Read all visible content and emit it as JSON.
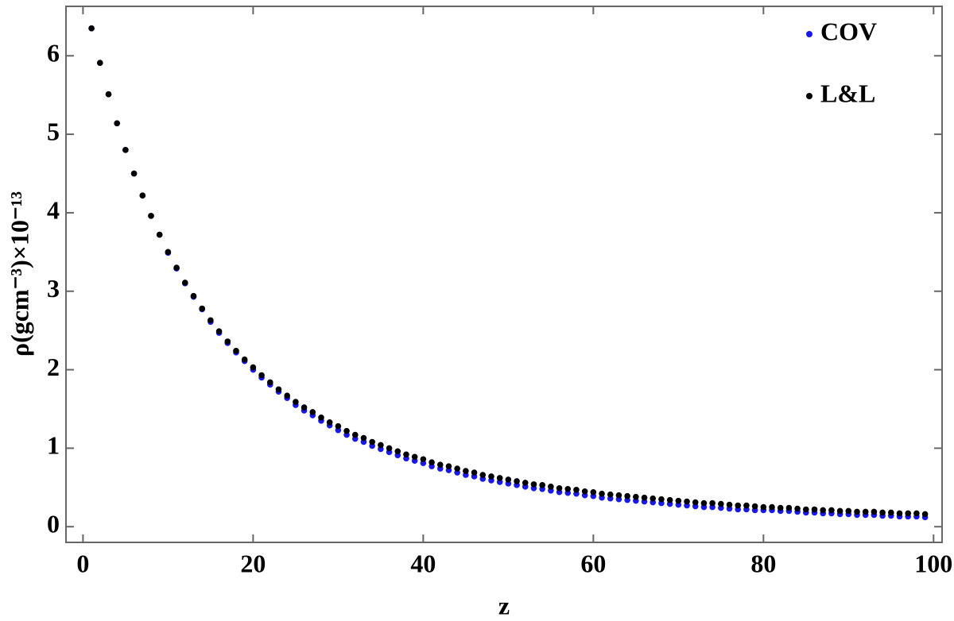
{
  "chart_data": {
    "type": "scatter",
    "x_label": "z",
    "y_label": "ρ(gcm⁻³)×10⁻¹³",
    "x": [
      1,
      2,
      3,
      4,
      5,
      6,
      7,
      8,
      9,
      10,
      11,
      12,
      13,
      14,
      15,
      16,
      17,
      18,
      19,
      20,
      21,
      22,
      23,
      24,
      25,
      26,
      27,
      28,
      29,
      30,
      31,
      32,
      33,
      34,
      35,
      36,
      37,
      38,
      39,
      40,
      41,
      42,
      43,
      44,
      45,
      46,
      47,
      48,
      49,
      50,
      51,
      52,
      53,
      54,
      55,
      56,
      57,
      58,
      59,
      60,
      61,
      62,
      63,
      64,
      65,
      66,
      67,
      68,
      69,
      70,
      71,
      72,
      73,
      74,
      75,
      76,
      77,
      78,
      79,
      80,
      81,
      82,
      83,
      84,
      85,
      86,
      87,
      88,
      89,
      90,
      91,
      92,
      93,
      94,
      95,
      96,
      97,
      98,
      99
    ],
    "series": [
      {
        "name": "COV",
        "color": "#1a1ae6",
        "values": [
          6.35,
          5.91,
          5.51,
          5.14,
          4.8,
          4.5,
          4.22,
          3.96,
          3.72,
          3.49,
          3.29,
          3.1,
          2.93,
          2.77,
          2.61,
          2.47,
          2.34,
          2.22,
          2.11,
          2.0,
          1.9,
          1.81,
          1.72,
          1.64,
          1.55,
          1.48,
          1.42,
          1.35,
          1.29,
          1.23,
          1.17,
          1.12,
          1.08,
          1.03,
          0.99,
          0.95,
          0.91,
          0.87,
          0.84,
          0.81,
          0.77,
          0.74,
          0.72,
          0.69,
          0.66,
          0.64,
          0.61,
          0.59,
          0.57,
          0.55,
          0.53,
          0.51,
          0.49,
          0.48,
          0.46,
          0.44,
          0.43,
          0.42,
          0.4,
          0.39,
          0.37,
          0.36,
          0.35,
          0.34,
          0.33,
          0.32,
          0.31,
          0.3,
          0.29,
          0.28,
          0.27,
          0.26,
          0.25,
          0.25,
          0.24,
          0.23,
          0.22,
          0.22,
          0.21,
          0.21,
          0.21,
          0.2,
          0.2,
          0.19,
          0.18,
          0.18,
          0.17,
          0.17,
          0.16,
          0.16,
          0.15,
          0.15,
          0.15,
          0.14,
          0.14,
          0.13,
          0.13,
          0.13,
          0.12
        ]
      },
      {
        "name": "L&L",
        "color": "#000000",
        "values": [
          6.35,
          5.91,
          5.51,
          5.14,
          4.8,
          4.5,
          4.22,
          3.96,
          3.72,
          3.5,
          3.3,
          3.11,
          2.94,
          2.78,
          2.63,
          2.49,
          2.36,
          2.24,
          2.13,
          2.03,
          1.93,
          1.84,
          1.75,
          1.67,
          1.59,
          1.52,
          1.46,
          1.39,
          1.33,
          1.28,
          1.22,
          1.17,
          1.13,
          1.08,
          1.04,
          1.0,
          0.96,
          0.92,
          0.89,
          0.86,
          0.82,
          0.79,
          0.77,
          0.74,
          0.71,
          0.69,
          0.66,
          0.64,
          0.62,
          0.6,
          0.58,
          0.56,
          0.54,
          0.53,
          0.51,
          0.49,
          0.48,
          0.47,
          0.45,
          0.44,
          0.42,
          0.41,
          0.4,
          0.39,
          0.38,
          0.37,
          0.36,
          0.35,
          0.34,
          0.33,
          0.32,
          0.31,
          0.3,
          0.3,
          0.29,
          0.28,
          0.27,
          0.27,
          0.26,
          0.25,
          0.25,
          0.24,
          0.24,
          0.23,
          0.22,
          0.22,
          0.21,
          0.21,
          0.2,
          0.2,
          0.19,
          0.19,
          0.19,
          0.18,
          0.18,
          0.17,
          0.17,
          0.17,
          0.16
        ]
      }
    ],
    "xlim": [
      -2,
      101
    ],
    "xticks": [
      0,
      20,
      40,
      60,
      80,
      100
    ],
    "ylim": [
      -0.2,
      6.63
    ],
    "yticks": [
      0,
      1,
      2,
      3,
      4,
      5,
      6
    ],
    "legend": "top-right"
  }
}
